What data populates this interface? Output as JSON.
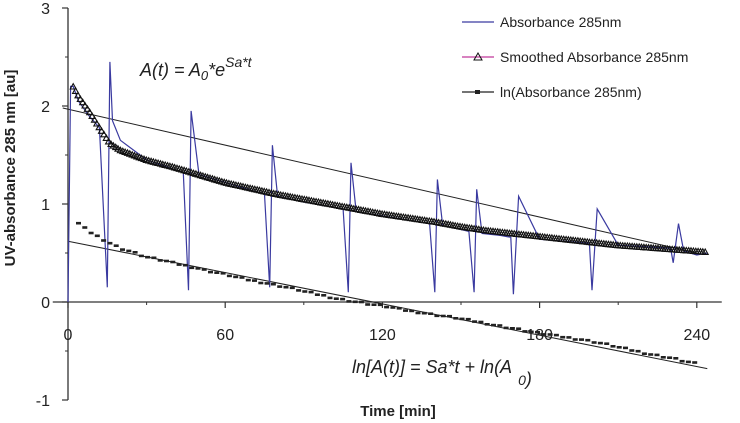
{
  "chart_data": {
    "type": "line",
    "xlabel": "Time [min]",
    "ylabel": "UV-absorbance 285 nm [au]",
    "xlim": [
      -2,
      248
    ],
    "ylim": [
      -1,
      3
    ],
    "x_ticks": [
      "0",
      "60",
      "120",
      "180",
      "240"
    ],
    "y_ticks": [
      "-1",
      "0",
      "1",
      "2",
      "3"
    ],
    "legend_position": "top-right",
    "grid": false,
    "legend": [
      {
        "label": "Absorbance 285nm",
        "color": "#3a3aa0",
        "marker": "none"
      },
      {
        "label": "Smoothed Absorbance 285nm",
        "color": "#c0389a",
        "marker": "open-triangle"
      },
      {
        "label": "ln(Absorbance 285nm)",
        "color": "#222222",
        "marker": "filled-square"
      }
    ],
    "annotations": {
      "exp_fit": {
        "text": "A(t) = A",
        "sub": "0",
        "mid": "*e",
        "sup": "Sa*t"
      },
      "ln_fit": {
        "text": "ln[A(t)] = Sa*t + ln(A",
        "sub": "0",
        "tail": ")"
      }
    },
    "series": [
      {
        "name": "Absorbance 285nm",
        "x": [
          0,
          1,
          2,
          4,
          8,
          12,
          15,
          16,
          17,
          20,
          30,
          44,
          46,
          47,
          50,
          60,
          75,
          77,
          78,
          80,
          90,
          105,
          107,
          108,
          110,
          120,
          138,
          140,
          141,
          143,
          150,
          153,
          155,
          156,
          158,
          165,
          169,
          170,
          172,
          180,
          199,
          200,
          202,
          210,
          230,
          231,
          233,
          235,
          240,
          244
        ],
        "y": [
          0,
          2.2,
          2.2,
          2.05,
          1.9,
          1.78,
          0.15,
          2.45,
          1.85,
          1.65,
          1.45,
          1.32,
          0.12,
          1.95,
          1.3,
          1.22,
          1.1,
          0.15,
          1.6,
          1.08,
          1.02,
          0.95,
          0.1,
          1.42,
          0.92,
          0.88,
          0.8,
          0.1,
          1.25,
          0.78,
          0.74,
          0.72,
          0.1,
          1.15,
          0.7,
          0.68,
          0.66,
          0.08,
          1.08,
          0.64,
          0.6,
          0.12,
          0.95,
          0.58,
          0.55,
          0.4,
          0.8,
          0.52,
          0.48,
          0.5
        ]
      },
      {
        "name": "Smoothed Absorbance 285nm",
        "x": [
          2,
          4,
          8,
          12,
          16,
          20,
          30,
          40,
          50,
          60,
          70,
          80,
          90,
          100,
          110,
          120,
          130,
          140,
          150,
          160,
          170,
          180,
          190,
          200,
          210,
          220,
          230,
          240,
          244
        ],
        "y": [
          2.2,
          2.1,
          1.95,
          1.78,
          1.62,
          1.55,
          1.45,
          1.38,
          1.3,
          1.22,
          1.16,
          1.1,
          1.05,
          1.0,
          0.95,
          0.9,
          0.86,
          0.82,
          0.77,
          0.73,
          0.7,
          0.67,
          0.64,
          0.61,
          0.58,
          0.56,
          0.54,
          0.52,
          0.51
        ]
      },
      {
        "name": "ln(Absorbance 285nm)",
        "x": [
          4,
          8,
          12,
          16,
          20,
          30,
          40,
          50,
          60,
          70,
          80,
          90,
          100,
          110,
          120,
          130,
          140,
          150,
          160,
          170,
          180,
          190,
          200,
          210,
          220,
          230,
          240
        ],
        "y": [
          0.8,
          0.72,
          0.66,
          0.6,
          0.55,
          0.46,
          0.4,
          0.34,
          0.28,
          0.22,
          0.17,
          0.11,
          0.05,
          0.0,
          -0.04,
          -0.09,
          -0.13,
          -0.17,
          -0.22,
          -0.27,
          -0.32,
          -0.36,
          -0.4,
          -0.46,
          -0.52,
          -0.57,
          -0.63
        ]
      }
    ],
    "fits": [
      {
        "name": "exp-fit",
        "x": [
          -2,
          240
        ],
        "y": [
          1.98,
          0.5
        ]
      },
      {
        "name": "ln-fit",
        "x": [
          0,
          244
        ],
        "y": [
          0.62,
          -0.68
        ]
      }
    ]
  }
}
